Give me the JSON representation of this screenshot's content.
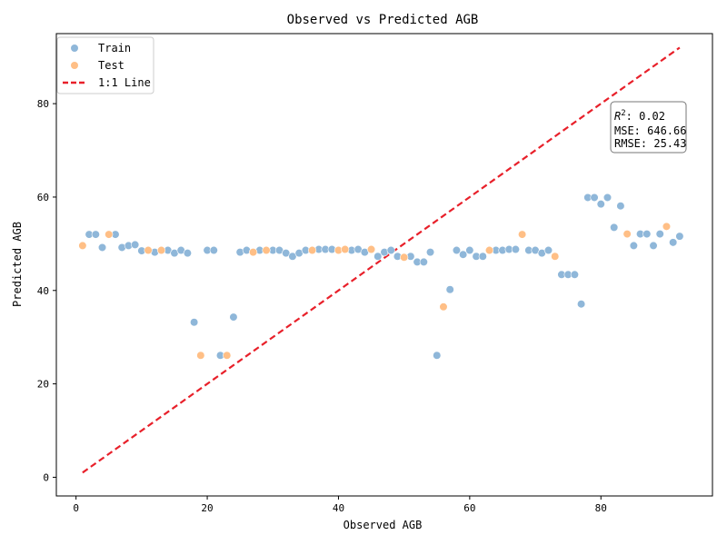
{
  "chart_data": {
    "type": "scatter",
    "title": "Observed vs Predicted AGB",
    "xlabel": "Observed AGB",
    "ylabel": "Predicted AGB",
    "xlim": [
      -3,
      97
    ],
    "ylim": [
      -4,
      95
    ],
    "xticks": [
      0,
      20,
      40,
      60,
      80
    ],
    "yticks": [
      0,
      20,
      40,
      60,
      80
    ],
    "grid": false,
    "legend_position": "top-left",
    "series": [
      {
        "name": "Train",
        "color": "#8fb7d9",
        "points": [
          [
            2,
            52
          ],
          [
            3,
            52
          ],
          [
            4,
            49.2
          ],
          [
            6,
            52
          ],
          [
            7,
            49.2
          ],
          [
            8,
            49.6
          ],
          [
            9,
            49.8
          ],
          [
            10,
            48.5
          ],
          [
            12,
            48.2
          ],
          [
            14,
            48.6
          ],
          [
            15,
            48
          ],
          [
            16,
            48.6
          ],
          [
            17,
            48
          ],
          [
            18,
            33.2
          ],
          [
            20,
            48.6
          ],
          [
            21,
            48.6
          ],
          [
            22,
            26.1
          ],
          [
            24,
            34.3
          ],
          [
            25,
            48.2
          ],
          [
            26,
            48.6
          ],
          [
            28,
            48.6
          ],
          [
            30,
            48.6
          ],
          [
            31,
            48.6
          ],
          [
            32,
            48
          ],
          [
            33,
            47.3
          ],
          [
            34,
            48
          ],
          [
            35,
            48.6
          ],
          [
            37,
            48.8
          ],
          [
            38,
            48.8
          ],
          [
            39,
            48.8
          ],
          [
            42,
            48.6
          ],
          [
            43,
            48.8
          ],
          [
            44,
            48.2
          ],
          [
            46,
            47.3
          ],
          [
            47,
            48.2
          ],
          [
            48,
            48.6
          ],
          [
            49,
            47.3
          ],
          [
            51,
            47.3
          ],
          [
            52,
            46.1
          ],
          [
            53,
            46.1
          ],
          [
            54,
            48.2
          ],
          [
            55,
            26.1
          ],
          [
            57,
            40.2
          ],
          [
            58,
            48.6
          ],
          [
            59,
            47.7
          ],
          [
            60,
            48.6
          ],
          [
            61,
            47.3
          ],
          [
            62,
            47.3
          ],
          [
            64,
            48.6
          ],
          [
            65,
            48.6
          ],
          [
            66,
            48.8
          ],
          [
            67,
            48.8
          ],
          [
            69,
            48.6
          ],
          [
            70,
            48.6
          ],
          [
            71,
            48
          ],
          [
            72,
            48.6
          ],
          [
            74,
            43.4
          ],
          [
            75,
            43.4
          ],
          [
            76,
            43.4
          ],
          [
            77,
            37.1
          ],
          [
            78,
            59.9
          ],
          [
            79,
            59.9
          ],
          [
            80,
            58.5
          ],
          [
            81,
            59.9
          ],
          [
            82,
            53.5
          ],
          [
            83,
            58.1
          ],
          [
            85,
            49.6
          ],
          [
            86,
            52.1
          ],
          [
            87,
            52.1
          ],
          [
            88,
            49.6
          ],
          [
            89,
            52.1
          ],
          [
            91,
            50.3
          ],
          [
            92,
            51.6
          ]
        ]
      },
      {
        "name": "Test",
        "color": "#ffbf86",
        "points": [
          [
            1,
            49.6
          ],
          [
            5,
            52
          ],
          [
            11,
            48.6
          ],
          [
            13,
            48.6
          ],
          [
            19,
            26.1
          ],
          [
            23,
            26.1
          ],
          [
            27,
            48.2
          ],
          [
            29,
            48.6
          ],
          [
            36,
            48.6
          ],
          [
            40,
            48.6
          ],
          [
            41,
            48.8
          ],
          [
            45,
            48.8
          ],
          [
            50,
            47.1
          ],
          [
            56,
            36.5
          ],
          [
            63,
            48.6
          ],
          [
            68,
            52
          ],
          [
            73,
            47.3
          ],
          [
            84,
            52.1
          ],
          [
            90,
            53.7
          ]
        ]
      }
    ],
    "reference_line": {
      "name": "1:1 Line",
      "color": "#e8202a",
      "from": [
        1,
        1
      ],
      "to": [
        92,
        92
      ]
    },
    "stats": {
      "r2_label": "R",
      "r2_sup": "2",
      "r2_value": ": 0.02",
      "mse": "MSE: 646.66",
      "rmse": "RMSE: 25.43"
    }
  }
}
